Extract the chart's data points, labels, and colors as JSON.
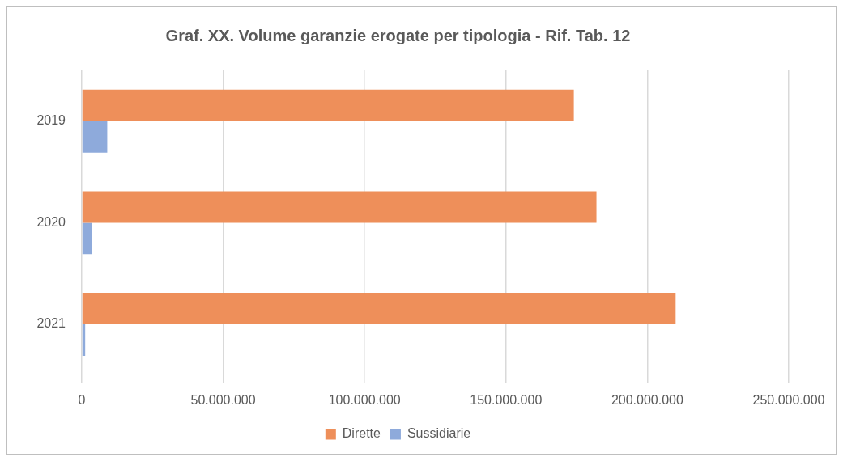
{
  "chart_data": {
    "type": "bar",
    "title": "Graf. XX. Volume garanzie erogate per tipologia - Rif. Tab. 12",
    "orientation": "horizontal",
    "categories": [
      "2019",
      "2020",
      "2021"
    ],
    "series": [
      {
        "name": "Dirette",
        "color": "#ee8f5a",
        "values": [
          174000000,
          182000000,
          210000000
        ]
      },
      {
        "name": "Sussidiarie",
        "color": "#8eaadb",
        "values": [
          9000000,
          3500000,
          1200000
        ]
      }
    ],
    "xlim": [
      0,
      250000000
    ],
    "xticks": [
      0,
      {
        "value": 50000000,
        "label": "50.000.000"
      },
      {
        "value": 100000000,
        "label": "100.000.000"
      },
      {
        "value": 150000000,
        "label": "150.000.000"
      },
      {
        "value": 200000000,
        "label": "200.000.000"
      },
      {
        "value": 250000000,
        "label": "250.000.000"
      }
    ],
    "grid": "x",
    "legend": "bottom"
  }
}
